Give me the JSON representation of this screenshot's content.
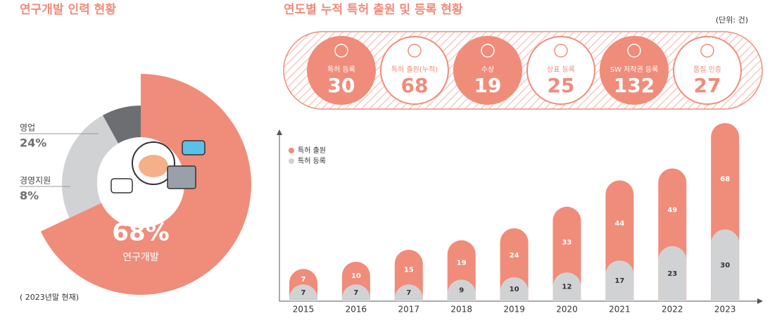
{
  "chart_data": [
    {
      "type": "pie",
      "title": "연구개발 인력 현황",
      "categories": [
        "연구개발",
        "영업",
        "경영지원"
      ],
      "values": [
        68,
        24,
        8
      ],
      "value_labels": [
        "68%",
        "24%",
        "8%"
      ],
      "colors": [
        "#f08c7a",
        "#d1d2d4",
        "#6d6e71"
      ],
      "note": "( 2023년말 현재)"
    },
    {
      "type": "bar",
      "title": "연도별 누적 특허 출원 및 등록 현황",
      "unit": "(단위: 건)",
      "categories": [
        "2015",
        "2016",
        "2017",
        "2018",
        "2019",
        "2020",
        "2021",
        "2022",
        "2023"
      ],
      "series": [
        {
          "name": "특허 출원",
          "color": "#f08c7a",
          "values": [
            7,
            10,
            15,
            19,
            24,
            33,
            44,
            49,
            68
          ]
        },
        {
          "name": "특허 등록",
          "color": "#d1d2d4",
          "values": [
            7,
            7,
            7,
            9,
            10,
            12,
            17,
            23,
            30
          ]
        }
      ],
      "legend": "upper left"
    }
  ],
  "summary": [
    {
      "label": "특허 등록",
      "value": 30
    },
    {
      "label": "특허 출원(누적)",
      "value": 68
    },
    {
      "label": "수상",
      "value": 19
    },
    {
      "label": "상표 등록",
      "value": 25
    },
    {
      "label": "SW 저작권 등록",
      "value": 132
    },
    {
      "label": "품질 인증",
      "value": 27
    }
  ]
}
